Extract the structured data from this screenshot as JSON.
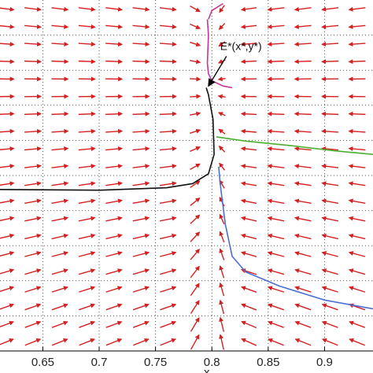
{
  "chart_data": {
    "type": "quiver",
    "xlabel": "x",
    "ylabel": "",
    "xlim": [
      0.612,
      0.943
    ],
    "ylim": [
      0,
      1
    ],
    "x_ticks": [
      0.65,
      0.7,
      0.75,
      0.8,
      0.85,
      0.9
    ],
    "x_tick_labels": [
      "0.65",
      "0.7",
      "0.75",
      "0.8",
      "0.85",
      "0.9"
    ],
    "grid": true,
    "grid_style": "dotted",
    "annotation": {
      "text": "E*(x*,y*)",
      "point": {
        "x": 0.7955,
        "y": 0.75
      }
    },
    "vector_field": {
      "color": "#d42020",
      "x_positions": [
        0.617,
        0.641,
        0.665,
        0.689,
        0.713,
        0.737,
        0.761,
        0.785,
        0.809,
        0.833,
        0.857,
        0.881,
        0.905,
        0.929
      ],
      "row_count": 20,
      "nullcline_x": 0.802
    },
    "series": [
      {
        "color": "#111111",
        "points": [
          [
            0.612,
            0.46
          ],
          [
            0.7,
            0.458
          ],
          [
            0.76,
            0.465
          ],
          [
            0.783,
            0.477
          ],
          [
            0.797,
            0.505
          ],
          [
            0.802,
            0.56
          ],
          [
            0.801,
            0.66
          ],
          [
            0.797,
            0.73
          ],
          [
            0.795,
            0.75
          ]
        ]
      },
      {
        "color": "#4a6fd0",
        "points": [
          [
            0.806,
            0.525
          ],
          [
            0.808,
            0.46
          ],
          [
            0.812,
            0.36
          ],
          [
            0.818,
            0.27
          ],
          [
            0.83,
            0.225
          ],
          [
            0.86,
            0.185
          ],
          [
            0.9,
            0.145
          ],
          [
            0.943,
            0.12
          ]
        ]
      },
      {
        "color": "#4caf30",
        "points": [
          [
            0.804,
            0.61
          ],
          [
            0.83,
            0.598
          ],
          [
            0.87,
            0.585
          ],
          [
            0.91,
            0.57
          ],
          [
            0.943,
            0.56
          ]
        ]
      },
      {
        "color": "#c2369a",
        "points": [
          [
            0.796,
            0.945
          ],
          [
            0.797,
            0.9
          ],
          [
            0.796,
            0.82
          ],
          [
            0.797,
            0.79
          ],
          [
            0.8,
            0.77
          ],
          [
            0.81,
            0.755
          ],
          [
            0.818,
            0.75
          ]
        ]
      },
      {
        "color": "#c2369a",
        "points": [
          [
            0.81,
            0.99
          ],
          [
            0.8,
            0.97
          ],
          [
            0.797,
            0.945
          ]
        ]
      }
    ]
  }
}
